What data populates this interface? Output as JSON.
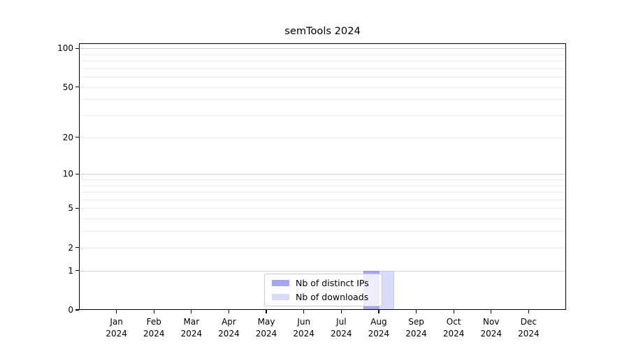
{
  "title": "semTools 2024",
  "chart_data": {
    "type": "bar",
    "title": "semTools 2024",
    "categories": [
      "Jan",
      "Feb",
      "Mar",
      "Apr",
      "May",
      "Jun",
      "Jul",
      "Aug",
      "Sep",
      "Oct",
      "Nov",
      "Dec"
    ],
    "year_label": "2024",
    "series": [
      {
        "name": "Nb of distinct IPs",
        "values": [
          0,
          0,
          0,
          0,
          0,
          0,
          0,
          1,
          0,
          0,
          0,
          0
        ],
        "fill": "#a6a6ef",
        "edge": "#9191e8"
      },
      {
        "name": "Nb of downloads",
        "values": [
          0,
          0,
          0,
          0,
          0,
          0,
          0,
          1,
          0,
          0,
          0,
          0
        ],
        "fill": "#dadaf9",
        "edge": "#c7c7f3"
      }
    ],
    "y_axis": {
      "scale": "log10(value+1)",
      "tick_values": [
        0,
        1,
        2,
        5,
        10,
        20,
        50,
        100
      ],
      "tick_labels": [
        "0",
        "1",
        "2",
        "5",
        "10",
        "20",
        "50",
        "100"
      ],
      "major_gridlines": [
        1,
        10,
        100
      ],
      "minor_gridlines": [
        2,
        3,
        4,
        5,
        6,
        7,
        8,
        9,
        20,
        30,
        40,
        50,
        60,
        70,
        80,
        90
      ],
      "range": [
        0,
        100
      ]
    },
    "legend_position": "bottom-center",
    "grid": "horizontal",
    "colors": {
      "grid_major": "#d2d2d2",
      "grid_minor": "#ececec",
      "frame": "#000000",
      "text": "#000000",
      "background": "#ffffff"
    }
  }
}
